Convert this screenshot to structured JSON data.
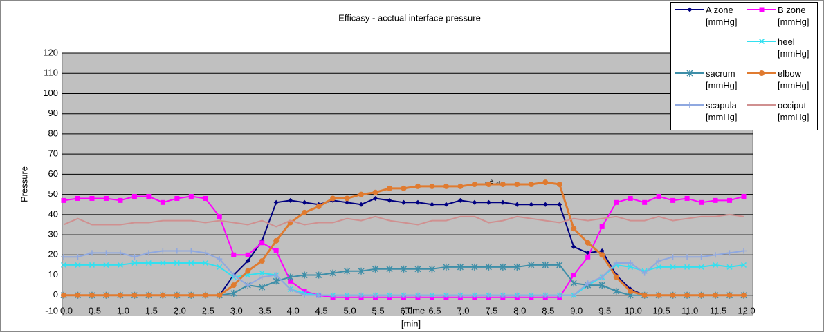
{
  "chart_data": {
    "type": "line",
    "title": "Efficasy - acctual interface pressure",
    "ylabel": "Pressure",
    "xlabel": "[min]",
    "annotations": [
      "Time",
      "ε Ẽ ঝ"
    ],
    "x": [
      0,
      0.25,
      0.5,
      0.75,
      1,
      1.25,
      1.5,
      1.75,
      2,
      2.25,
      2.5,
      2.75,
      3,
      3.25,
      3.5,
      3.75,
      4,
      4.25,
      4.5,
      4.75,
      5,
      5.25,
      5.5,
      5.75,
      6,
      6.25,
      6.5,
      6.75,
      7,
      7.25,
      7.5,
      7.75,
      8,
      8.25,
      8.5,
      8.75,
      9,
      9.25,
      9.5,
      9.75,
      10,
      10.25,
      10.5,
      10.75,
      11,
      11.25,
      11.5,
      11.75,
      12
    ],
    "xlim": [
      0,
      12
    ],
    "xticks": [
      {
        "value": 0,
        "label": "0.0"
      },
      0.5,
      {
        "value": 1,
        "label": "1.0"
      },
      1.5,
      {
        "value": 2,
        "label": "2.0"
      },
      2.5,
      {
        "value": 3,
        "label": "3.0"
      },
      3.5,
      {
        "value": 4,
        "label": "4.0"
      },
      4.5,
      {
        "value": 5,
        "label": "5.0"
      },
      5.5,
      {
        "value": 6,
        "label": "6.0"
      },
      6.5,
      {
        "value": 7,
        "label": "7.0"
      },
      7.5,
      {
        "value": 8,
        "label": "8.0"
      },
      8.5,
      {
        "value": 9,
        "label": "9.0"
      },
      9.5,
      {
        "value": 10,
        "label": "10.0"
      },
      10.5,
      {
        "value": 11,
        "label": "11.0"
      },
      11.5,
      {
        "value": 12,
        "label": "12.0"
      }
    ],
    "ylim": [
      -10,
      120
    ],
    "yticks": [
      -10,
      0,
      10,
      20,
      30,
      40,
      50,
      60,
      70,
      80,
      90,
      100,
      110,
      120
    ],
    "grid": true,
    "legend": "top-right",
    "series": [
      {
        "name": "A zone [mmHg]",
        "color": "#000080",
        "marker": "diamond",
        "values": [
          0,
          0,
          0,
          0,
          0,
          0,
          0,
          0,
          0,
          0,
          0,
          0,
          10,
          17,
          27,
          46,
          47,
          46,
          45,
          47,
          46,
          45,
          48,
          47,
          46,
          46,
          45,
          45,
          47,
          46,
          46,
          46,
          45,
          45,
          45,
          45,
          24,
          21,
          22,
          10,
          3,
          0,
          0,
          0,
          0,
          0,
          0,
          0,
          0
        ]
      },
      {
        "name": "B zone [mmHg]",
        "color": "#ff00ff",
        "marker": "square",
        "values": [
          47,
          48,
          48,
          48,
          47,
          49,
          49,
          46,
          48,
          49,
          48,
          39,
          20,
          20,
          26,
          22,
          7,
          2,
          0,
          -1,
          -1,
          -1,
          -1,
          -1,
          -1,
          -1,
          -1,
          -1,
          -1,
          -1,
          -1,
          -1,
          -1,
          -1,
          -1,
          -1,
          10,
          19,
          34,
          46,
          48,
          46,
          49,
          47,
          48,
          46,
          47,
          47,
          49
        ]
      },
      {
        "name": "heel [mmHg]",
        "color": "#33e0f0",
        "marker": "x",
        "values": [
          15,
          15,
          15,
          15,
          15,
          16,
          16,
          16,
          16,
          16,
          16,
          14,
          9,
          10,
          11,
          10,
          3,
          1,
          0,
          0,
          0,
          0,
          0,
          0,
          0,
          0,
          0,
          0,
          0,
          0,
          0,
          0,
          0,
          0,
          0,
          0,
          0,
          5,
          9,
          15,
          14,
          12,
          14,
          14,
          14,
          14,
          15,
          14,
          15
        ]
      },
      {
        "name": "sacrum [mmHg]",
        "color": "#3d8ea8",
        "marker": "star",
        "values": [
          0,
          0,
          0,
          0,
          0,
          0,
          0,
          0,
          0,
          0,
          0,
          0,
          1,
          5,
          4,
          7,
          9,
          10,
          10,
          11,
          12,
          12,
          13,
          13,
          13,
          13,
          13,
          14,
          14,
          14,
          14,
          14,
          14,
          15,
          15,
          15,
          6,
          5,
          5,
          2,
          0,
          0,
          0,
          0,
          0,
          0,
          0,
          0,
          0
        ]
      },
      {
        "name": "elbow [mmHg]",
        "color": "#e07b30",
        "marker": "circle",
        "values": [
          0,
          0,
          0,
          0,
          0,
          0,
          0,
          0,
          0,
          0,
          0,
          0,
          5,
          12,
          17,
          27,
          36,
          41,
          44,
          48,
          48,
          50,
          51,
          53,
          53,
          54,
          54,
          54,
          54,
          55,
          55,
          55,
          55,
          55,
          56,
          55,
          33,
          26,
          20,
          9,
          2,
          0,
          0,
          0,
          0,
          0,
          0,
          0,
          0
        ]
      },
      {
        "name": "scapula [mmHg]",
        "color": "#8fa8e0",
        "marker": "plus",
        "values": [
          19,
          19,
          21,
          21,
          21,
          19,
          21,
          22,
          22,
          22,
          21,
          18,
          10,
          5,
          9,
          10,
          3,
          0,
          0,
          0,
          0,
          0,
          0,
          0,
          0,
          0,
          0,
          0,
          0,
          0,
          0,
          0,
          0,
          0,
          0,
          0,
          0,
          6,
          9,
          16,
          16,
          11,
          17,
          19,
          19,
          19,
          20,
          21,
          22
        ]
      },
      {
        "name": "occiput [mmHg]",
        "color": "#d09090",
        "marker": "none",
        "values": [
          35,
          38,
          35,
          35,
          35,
          36,
          36,
          37,
          37,
          37,
          36,
          37,
          36,
          35,
          37,
          34,
          37,
          35,
          36,
          36,
          38,
          37,
          39,
          37,
          36,
          35,
          37,
          37,
          39,
          39,
          36,
          37,
          39,
          38,
          37,
          36,
          38,
          37,
          38,
          39,
          37,
          37,
          39,
          37,
          38,
          39,
          39,
          40,
          39
        ]
      }
    ]
  }
}
